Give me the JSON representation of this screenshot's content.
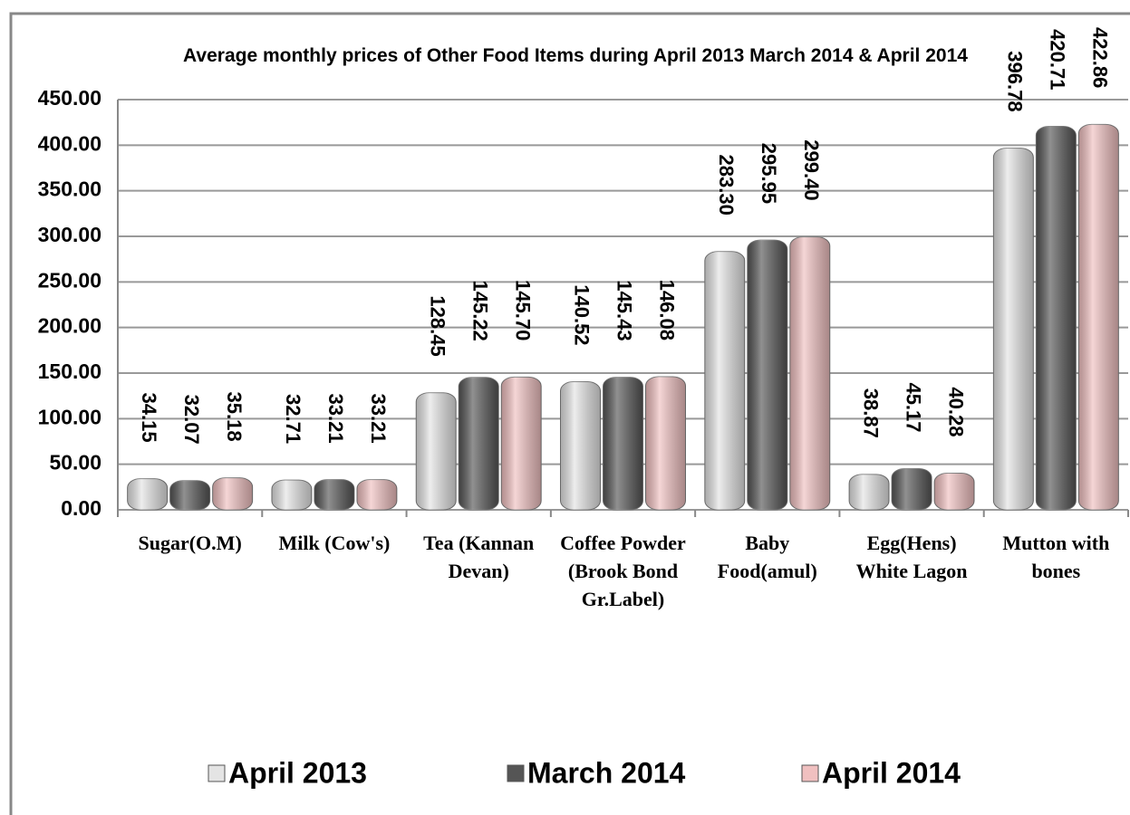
{
  "chart_data": {
    "type": "bar",
    "title": "Average monthly prices of Other Food Items during  April   2013 March 2014 & April 2014",
    "categories": [
      "Sugar(O.M)",
      "Milk (Cow's)",
      "Tea (Kannan Devan)",
      "Coffee Powder (Brook Bond Gr.Label)",
      "Baby Food(amul)",
      "Egg(Hens) White Lagon",
      "Mutton with bones"
    ],
    "series": [
      {
        "name": "April 2013",
        "color": "#e4e4e4",
        "values": [
          34.15,
          32.71,
          128.45,
          140.52,
          283.3,
          38.87,
          396.78
        ],
        "value_labels": [
          "34.15",
          "32.71",
          "128.45",
          "140.52",
          "283.30",
          "38.87",
          "396.78"
        ]
      },
      {
        "name": "March 2014",
        "color": "#555555",
        "values": [
          32.07,
          33.21,
          145.22,
          145.43,
          295.95,
          45.17,
          420.71
        ],
        "value_labels": [
          "32.07",
          "33.21",
          "145.22",
          "145.43",
          "295.95",
          "45.17",
          "420.71"
        ]
      },
      {
        "name": "April 2014",
        "color": "#f0c0c0",
        "values": [
          35.18,
          33.21,
          145.7,
          146.08,
          299.4,
          40.28,
          422.86
        ],
        "value_labels": [
          "35.18",
          "33.21",
          "145.70",
          "146.08",
          "299.40",
          "40.28",
          "422.86"
        ]
      }
    ],
    "ylim": [
      0,
      450
    ],
    "yticks": [
      {
        "value": 0,
        "label": "0.00"
      },
      {
        "value": 50,
        "label": "50.00"
      },
      {
        "value": 100,
        "label": "100.00"
      },
      {
        "value": 150,
        "label": "150.00"
      },
      {
        "value": 200,
        "label": "200.00"
      },
      {
        "value": 250,
        "label": "250.00"
      },
      {
        "value": 300,
        "label": "300.00"
      },
      {
        "value": 350,
        "label": "350.00"
      },
      {
        "value": 400,
        "label": "400.00"
      },
      {
        "value": 450,
        "label": "450.00"
      }
    ],
    "grid": true,
    "legend": "bottom"
  }
}
